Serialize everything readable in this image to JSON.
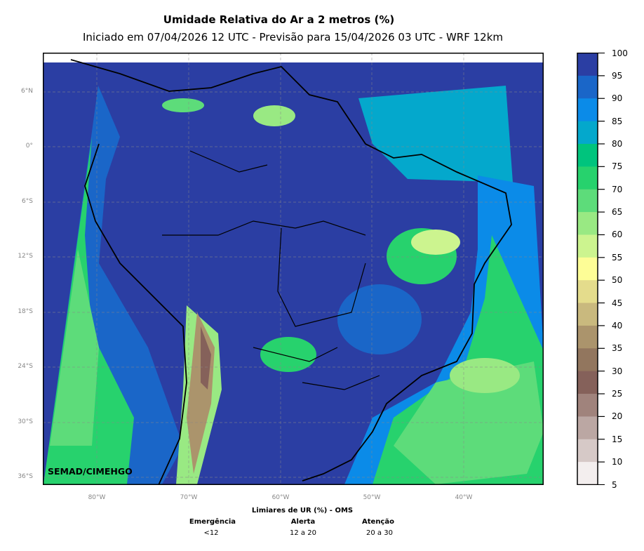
{
  "title": "Umidade Relativa do Ar a 2 metros (%)",
  "subtitle": "Iniciado em 07/04/2026 12 UTC - Previsão para 15/04/2026 03 UTC - WRF 12km",
  "lat_labels": [
    "6°N",
    "0°",
    "6°S",
    "12°S",
    "18°S",
    "24°S",
    "30°S",
    "36°S"
  ],
  "lon_labels": [
    "80°W",
    "70°W",
    "60°W",
    "50°W",
    "40°W"
  ],
  "watermark": "SEMAD/CIMEHGO",
  "colorbar": {
    "ticks": [
      "100",
      "95",
      "90",
      "85",
      "80",
      "75",
      "70",
      "65",
      "60",
      "55",
      "50",
      "45",
      "40",
      "35",
      "30",
      "25",
      "20",
      "15",
      "10",
      "5"
    ],
    "colors": [
      "#2b3ea3",
      "#1a66c8",
      "#0b8be8",
      "#04a8cc",
      "#00c47d",
      "#27d26d",
      "#5ddc7a",
      "#99e983",
      "#ccf48f",
      "#fdfd96",
      "#e4dc8c",
      "#c9b97e",
      "#ab946c",
      "#92765e",
      "#85615a",
      "#a0837c",
      "#bba7a3",
      "#d6c9c7",
      "#f3eeee"
    ]
  },
  "legend": {
    "title": "Limiares de UR (%) - OMS",
    "items": [
      {
        "label": "Emergência",
        "value": "<12"
      },
      {
        "label": "Alerta",
        "value": "12 a 20"
      },
      {
        "label": "Atenção",
        "value": "20 a 30"
      }
    ]
  }
}
